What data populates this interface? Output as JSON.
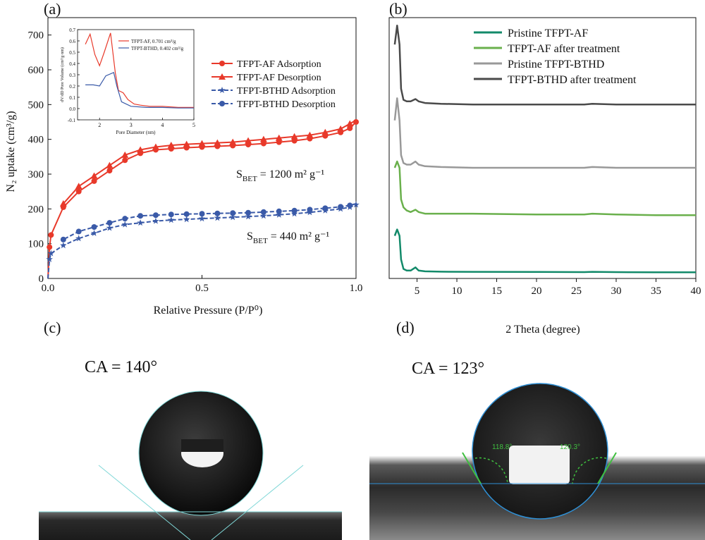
{
  "panels": {
    "a": "(a)",
    "b": "(b)",
    "c": "(c)",
    "d": "(d)"
  },
  "chart_data": [
    {
      "id": "a",
      "type": "line",
      "xlabel": "Relative Pressure (P/P⁰)",
      "ylabel": "N₂ uptake (cm³/g)",
      "xlim": [
        0,
        1.0
      ],
      "ylim": [
        0,
        750
      ],
      "xticks": [
        0.0,
        0.5,
        1.0
      ],
      "xtick_labels": [
        "0.0",
        "0.5",
        "1.0"
      ],
      "yticks": [
        0,
        100,
        200,
        300,
        400,
        500,
        600,
        700
      ],
      "ytick_labels": [
        "0",
        "100",
        "200",
        "300",
        "400",
        "500",
        "600",
        "700"
      ],
      "annotations": [
        {
          "text": "S",
          "sub": "BET",
          "rest": " = 1200 m² g⁻¹"
        },
        {
          "text": "S",
          "sub": "BET",
          "rest": " = 440 m² g⁻¹"
        }
      ],
      "legend_position": "top-right",
      "series": [
        {
          "name": "TFPT-AF Adsorption",
          "color": "#e8392a",
          "marker": "circle",
          "x": [
            0.0,
            0.005,
            0.01,
            0.05,
            0.1,
            0.15,
            0.2,
            0.25,
            0.3,
            0.35,
            0.4,
            0.45,
            0.5,
            0.55,
            0.6,
            0.65,
            0.7,
            0.75,
            0.8,
            0.85,
            0.9,
            0.95,
            0.98,
            1.0
          ],
          "y": [
            0,
            90,
            125,
            205,
            250,
            280,
            310,
            340,
            360,
            370,
            373,
            376,
            378,
            380,
            382,
            385,
            388,
            392,
            396,
            402,
            410,
            420,
            432,
            450
          ]
        },
        {
          "name": "TFPT-AF Desorption",
          "color": "#e8392a",
          "marker": "triangle",
          "x": [
            1.0,
            0.98,
            0.95,
            0.9,
            0.85,
            0.8,
            0.75,
            0.7,
            0.65,
            0.6,
            0.55,
            0.5,
            0.45,
            0.4,
            0.35,
            0.3,
            0.25,
            0.2,
            0.15,
            0.1,
            0.05
          ],
          "y": [
            455,
            445,
            430,
            420,
            412,
            408,
            404,
            400,
            396,
            392,
            390,
            388,
            386,
            383,
            378,
            370,
            355,
            325,
            295,
            265,
            215
          ]
        },
        {
          "name": "TFPT-BTHD Adsorption",
          "color": "#3a5aa8",
          "marker": "star",
          "x": [
            0.0,
            0.005,
            0.01,
            0.05,
            0.1,
            0.15,
            0.2,
            0.25,
            0.3,
            0.35,
            0.4,
            0.45,
            0.5,
            0.55,
            0.6,
            0.65,
            0.7,
            0.75,
            0.8,
            0.85,
            0.9,
            0.95,
            0.98,
            1.0
          ],
          "y": [
            0,
            55,
            72,
            95,
            115,
            130,
            145,
            155,
            160,
            165,
            168,
            170,
            172,
            174,
            176,
            178,
            180,
            183,
            186,
            190,
            195,
            200,
            205,
            212
          ]
        },
        {
          "name": "TFPT-BTHD Desorption",
          "color": "#3a5aa8",
          "marker": "hexagon",
          "x": [
            1.0,
            0.98,
            0.95,
            0.9,
            0.85,
            0.8,
            0.75,
            0.7,
            0.65,
            0.6,
            0.55,
            0.5,
            0.45,
            0.4,
            0.35,
            0.3,
            0.25,
            0.2,
            0.15,
            0.1,
            0.05
          ],
          "y": [
            215,
            210,
            206,
            202,
            198,
            195,
            193,
            191,
            189,
            188,
            187,
            186,
            185,
            184,
            182,
            180,
            172,
            160,
            148,
            135,
            112
          ]
        }
      ],
      "inset": {
        "xlabel": "Pore Diameter (nm)",
        "ylabel": "dV/dD Pore Volume (cm³/g·nm)",
        "xlim": [
          1.3,
          5
        ],
        "ylim": [
          -0.1,
          0.7
        ],
        "xticks": [
          2,
          3,
          4,
          5
        ],
        "xtick_labels": [
          "2",
          "3",
          "4",
          "5"
        ],
        "yticks": [
          -0.1,
          0.0,
          0.1,
          0.2,
          0.3,
          0.4,
          0.5,
          0.6,
          0.7
        ],
        "ytick_labels": [
          "-0.1",
          "0.0",
          "0.1",
          "0.2",
          "0.3",
          "0.4",
          "0.5",
          "0.6",
          "0.7"
        ],
        "series": [
          {
            "name": "TFPT-AF,  0.701 cm³/g",
            "color": "#e8392a",
            "x": [
              1.55,
              1.7,
              1.85,
              2.0,
              2.15,
              2.35,
              2.5,
              2.6,
              2.75,
              2.9,
              3.1,
              3.3,
              3.6,
              4.0,
              4.5,
              5.0
            ],
            "y": [
              0.57,
              0.66,
              0.48,
              0.38,
              0.5,
              0.67,
              0.32,
              0.16,
              0.14,
              0.08,
              0.04,
              0.03,
              0.02,
              0.02,
              0.01,
              0.01
            ]
          },
          {
            "name": "TFPT-BTHD,  0.402 cm³/g",
            "color": "#3a5aa8",
            "x": [
              1.55,
              1.8,
              2.0,
              2.2,
              2.45,
              2.55,
              2.7,
              3.0,
              3.5,
              4.0,
              4.5,
              5.0
            ],
            "y": [
              0.21,
              0.21,
              0.2,
              0.29,
              0.32,
              0.2,
              0.06,
              0.02,
              0.01,
              0.01,
              0.005,
              0.005
            ]
          }
        ]
      }
    },
    {
      "id": "b",
      "type": "line",
      "xlabel": "2 Theta (degree)",
      "ylabel": "",
      "xlim": [
        1.5,
        40
      ],
      "xticks": [
        5,
        10,
        15,
        20,
        25,
        30,
        35,
        40
      ],
      "xtick_labels": [
        "5",
        "10",
        "15",
        "20",
        "25",
        "30",
        "35",
        "40"
      ],
      "legend_position": "top-right",
      "series": [
        {
          "name": "Pristine TFPT-AF",
          "color": "#138a6a",
          "x": [
            2.2,
            2.5,
            2.8,
            3.0,
            3.3,
            3.7,
            4.2,
            4.8,
            5.2,
            6,
            8,
            12,
            20,
            26,
            27,
            30,
            35,
            40
          ],
          "y": [
            0.27,
            0.31,
            0.27,
            0.12,
            0.06,
            0.05,
            0.05,
            0.07,
            0.05,
            0.045,
            0.043,
            0.042,
            0.041,
            0.04,
            0.042,
            0.04,
            0.039,
            0.039
          ]
        },
        {
          "name": "TFPT-AF after treatment",
          "color": "#6ab04c",
          "x": [
            2.2,
            2.5,
            2.8,
            3.0,
            3.3,
            3.7,
            4.2,
            4.8,
            5.2,
            6,
            8,
            12,
            20,
            26,
            27,
            30,
            35,
            40
          ],
          "y": [
            0.7,
            0.74,
            0.7,
            0.5,
            0.45,
            0.43,
            0.42,
            0.435,
            0.42,
            0.41,
            0.41,
            0.41,
            0.405,
            0.405,
            0.41,
            0.405,
            0.4,
            0.4
          ]
        },
        {
          "name": "Pristine TFPT-BTHD",
          "color": "#999999",
          "x": [
            2.2,
            2.5,
            2.8,
            3.0,
            3.3,
            3.7,
            4.2,
            4.8,
            5.2,
            6,
            8,
            12,
            20,
            26,
            27,
            30,
            35,
            40
          ],
          "y": [
            1.0,
            1.14,
            1.0,
            0.78,
            0.73,
            0.72,
            0.72,
            0.74,
            0.72,
            0.71,
            0.705,
            0.7,
            0.7,
            0.7,
            0.705,
            0.7,
            0.7,
            0.7
          ]
        },
        {
          "name": "TFPT-BTHD after treatment",
          "color": "#4a4a4a",
          "x": [
            2.2,
            2.5,
            2.8,
            3.0,
            3.3,
            3.7,
            4.2,
            4.8,
            5.2,
            6,
            8,
            12,
            20,
            26,
            27,
            30,
            35,
            40
          ],
          "y": [
            1.48,
            1.6,
            1.48,
            1.2,
            1.13,
            1.12,
            1.12,
            1.135,
            1.12,
            1.11,
            1.105,
            1.1,
            1.1,
            1.1,
            1.105,
            1.1,
            1.1,
            1.1
          ]
        }
      ]
    }
  ],
  "contact_angle": {
    "c": {
      "label": "CA = 140°"
    },
    "d": {
      "label": "CA = 123°",
      "left_angle": "118.8°",
      "right_angle": "120.3°"
    }
  }
}
